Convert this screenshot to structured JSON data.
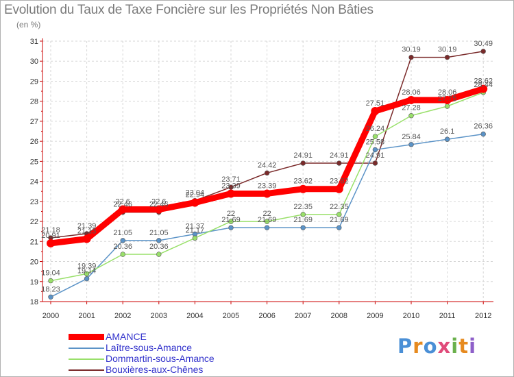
{
  "chart_data": {
    "type": "line",
    "title": "Evolution du Taux de Taxe Foncière sur les Propriétés Non Bâties",
    "ylabel": "(en %)",
    "xlabel": "",
    "x": [
      "2000",
      "2001",
      "2002",
      "2003",
      "2004",
      "2005",
      "2006",
      "2007",
      "2008",
      "2009",
      "2010",
      "2011",
      "2012"
    ],
    "ylim": [
      18,
      31
    ],
    "yticks": [
      "18",
      "19",
      "20",
      "21",
      "22",
      "23",
      "24",
      "25",
      "26",
      "27",
      "28",
      "29",
      "30",
      "31"
    ],
    "grid": true,
    "legend_position": "bottom-left",
    "series": [
      {
        "name": "Bouxières-aux-Chênes",
        "color": "#7a2a2a",
        "values": [
          21.18,
          21.39,
          22.46,
          22.46,
          23.04,
          23.71,
          24.42,
          24.91,
          24.91,
          24.91,
          30.19,
          30.19,
          30.49
        ],
        "labels": [
          "21.18",
          "21.39",
          "22.46",
          "22.46",
          "23.04",
          "23.71",
          "24.42",
          "24.91",
          "24.91",
          "24.91",
          "30.19",
          "30.19",
          "30.49"
        ]
      },
      {
        "name": "Laître-sous-Amance",
        "color": "#5b93c7",
        "values": [
          18.23,
          19.14,
          21.05,
          21.05,
          21.37,
          21.69,
          21.69,
          21.69,
          21.69,
          25.58,
          25.84,
          26.1,
          26.36
        ],
        "labels": [
          "18.23",
          "19.14",
          "21.05",
          "21.05",
          "21.37",
          "21.69",
          "21.69",
          "21.69",
          "21.69",
          "25.58",
          "25.84",
          "26.1",
          "26.36"
        ]
      },
      {
        "name": "Dommartin-sous-Amance",
        "color": "#99e06a",
        "values": [
          19.04,
          19.39,
          20.36,
          20.36,
          21.17,
          22,
          22,
          22.35,
          22.35,
          26.24,
          27.28,
          27.75,
          28.44
        ],
        "labels": [
          "19.04",
          "19.39",
          "20.36",
          "20.36",
          "21.17",
          "22",
          "22",
          "22.35",
          "22.35",
          "26.24",
          "27.28",
          "27.75",
          "28.44"
        ]
      },
      {
        "name": "AMANCE",
        "color": "#ff0000",
        "values": [
          20.91,
          21.13,
          22.6,
          22.6,
          22.94,
          23.39,
          23.39,
          23.62,
          23.62,
          27.51,
          28.06,
          28.06,
          28.62
        ],
        "labels": [
          "20.91",
          "21.13",
          "22.6",
          "22.6",
          "22.94",
          "23.39",
          "23.39",
          "23.62",
          "23.62",
          "27.51",
          "28.06",
          "28.06",
          "28.62"
        ]
      }
    ]
  },
  "legend": {
    "items": [
      {
        "name": "AMANCE",
        "color": "#ff0000"
      },
      {
        "name": "Laître-sous-Amance",
        "color": "#5b93c7"
      },
      {
        "name": "Dommartin-sous-Amance",
        "color": "#99e06a"
      },
      {
        "name": "Bouxières-aux-Chênes",
        "color": "#7a2a2a"
      }
    ]
  },
  "logo": {
    "text": "Proxiti",
    "letters": [
      "P",
      "r",
      "o",
      "x",
      "i",
      "t",
      "i"
    ],
    "colors": [
      "#4a8fd6",
      "#e68a1f",
      "#4a8fd6",
      "#e04b7a",
      "#6ab04c",
      "#e68a1f",
      "#8e5fc9"
    ]
  }
}
